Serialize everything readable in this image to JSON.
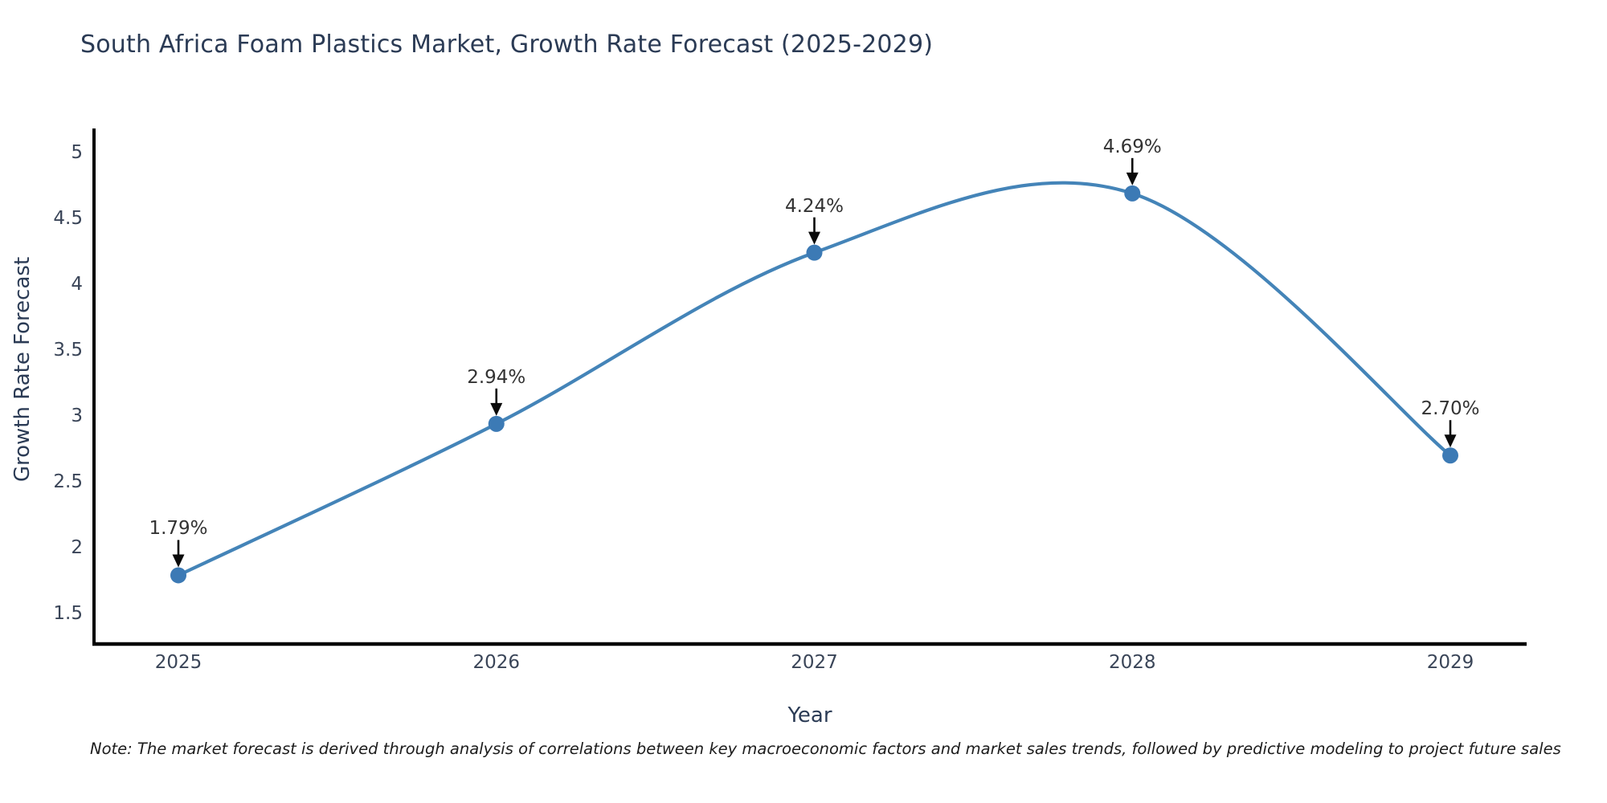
{
  "title": "South Africa Foam Plastics Market, Growth Rate Forecast (2025-2029)",
  "note": "Note: The market forecast is derived through analysis of correlations between key macroeconomic factors and market sales trends, followed by predictive modeling to project future sales",
  "chart_data": {
    "type": "line",
    "line_shape": "spline",
    "title": "South Africa Foam Plastics Market, Growth Rate Forecast (2025-2029)",
    "xlabel": "Year",
    "ylabel": "Growth Rate Forecast",
    "x": [
      2025,
      2026,
      2027,
      2028,
      2029
    ],
    "y": [
      1.79,
      2.94,
      4.24,
      4.69,
      2.7
    ],
    "point_labels": [
      "1.79%",
      "2.94%",
      "4.24%",
      "4.69%",
      "2.70%"
    ],
    "yticks": [
      1.5,
      2,
      2.5,
      3,
      3.5,
      4,
      4.5,
      5
    ],
    "ylim": [
      1.27,
      5.18
    ],
    "grid": false,
    "legend": "none",
    "annotation_style": "value label above point with downward black arrow",
    "colors": {
      "line": "#4484b8",
      "marker": "#3c7ab5",
      "arrow": "#0a0a0a",
      "axis": "#000000",
      "title_text": "#2b3b55",
      "axis_title_text": "#2b3b55",
      "tick_text": "#3a4558",
      "annotation_text": "#333333",
      "note_text": "#1d1d1d",
      "background": "#ffffff"
    }
  }
}
